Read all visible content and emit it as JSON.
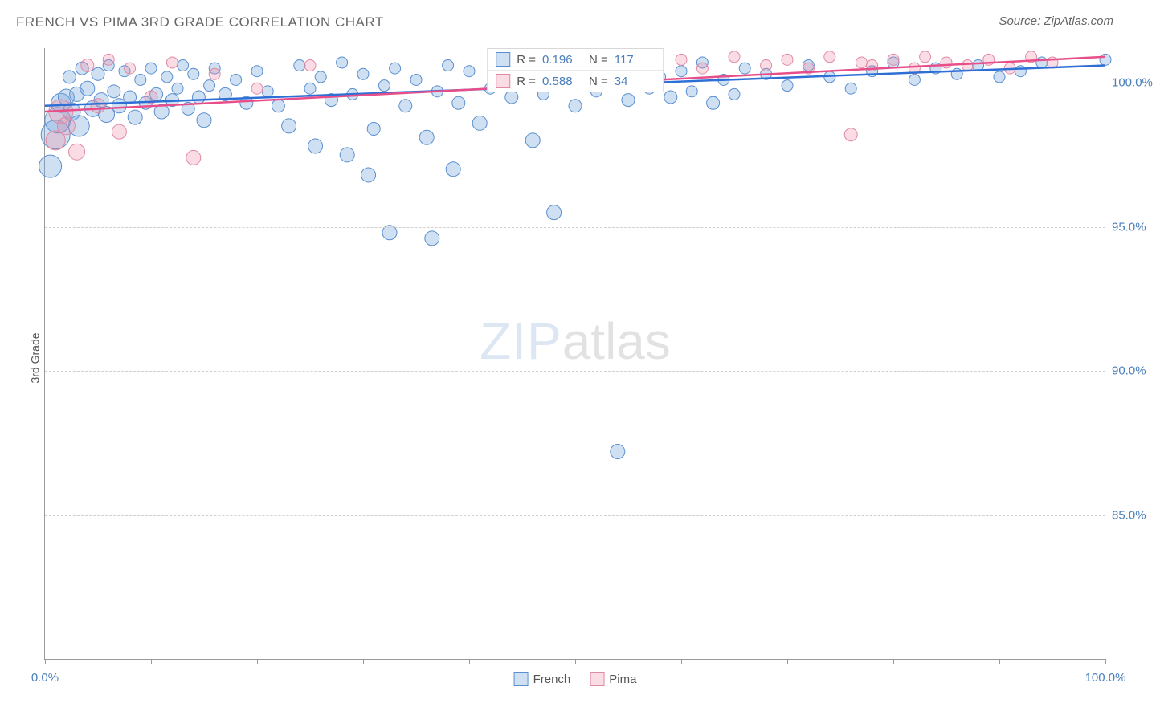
{
  "title": "FRENCH VS PIMA 3RD GRADE CORRELATION CHART",
  "source": "Source: ZipAtlas.com",
  "ylabel": "3rd Grade",
  "watermark_zip": "ZIP",
  "watermark_atlas": "atlas",
  "chart": {
    "type": "scatter",
    "xlim": [
      0,
      100
    ],
    "ylim": [
      80,
      101.2
    ],
    "x_ticks": [
      0,
      10,
      20,
      30,
      40,
      50,
      60,
      70,
      80,
      90,
      100
    ],
    "x_tick_labels": {
      "0": "0.0%",
      "100": "100.0%"
    },
    "y_ticks": [
      85,
      90,
      95,
      100
    ],
    "y_tick_labels": {
      "85": "85.0%",
      "90": "90.0%",
      "95": "95.0%",
      "100": "100.0%"
    },
    "grid_color": "#d0d0d0",
    "background_color": "#ffffff",
    "axis_color": "#999999",
    "label_color": "#4a7ebb",
    "label_fontsize": 15,
    "title_fontsize": 17,
    "title_color": "#666666",
    "series": [
      {
        "name": "French",
        "fill_color": "rgba(120,165,220,0.35)",
        "stroke_color": "#5a8fcf",
        "line_color": "#2e6fd6",
        "line_width": 2.5,
        "trend": {
          "x0": 0,
          "y0": 99.2,
          "x1": 100,
          "y1": 100.6
        },
        "R_label": "R =",
        "R_value": "0.196",
        "N_label": "N =",
        "N_value": "117",
        "points": [
          {
            "x": 0.5,
            "y": 97.1,
            "r": 14
          },
          {
            "x": 1,
            "y": 98.2,
            "r": 18
          },
          {
            "x": 1.2,
            "y": 98.7,
            "r": 16
          },
          {
            "x": 1.5,
            "y": 99.3,
            "r": 12
          },
          {
            "x": 2,
            "y": 99.5,
            "r": 10
          },
          {
            "x": 2.3,
            "y": 100.2,
            "r": 8
          },
          {
            "x": 2.5,
            "y": 99.0,
            "r": 11
          },
          {
            "x": 3,
            "y": 99.6,
            "r": 9
          },
          {
            "x": 3.2,
            "y": 98.5,
            "r": 13
          },
          {
            "x": 3.5,
            "y": 100.5,
            "r": 8
          },
          {
            "x": 4,
            "y": 99.8,
            "r": 9
          },
          {
            "x": 4.5,
            "y": 99.1,
            "r": 10
          },
          {
            "x": 5,
            "y": 100.3,
            "r": 8
          },
          {
            "x": 5.3,
            "y": 99.4,
            "r": 9
          },
          {
            "x": 5.8,
            "y": 98.9,
            "r": 10
          },
          {
            "x": 6,
            "y": 100.6,
            "r": 7
          },
          {
            "x": 6.5,
            "y": 99.7,
            "r": 8
          },
          {
            "x": 7,
            "y": 99.2,
            "r": 9
          },
          {
            "x": 7.5,
            "y": 100.4,
            "r": 7
          },
          {
            "x": 8,
            "y": 99.5,
            "r": 8
          },
          {
            "x": 8.5,
            "y": 98.8,
            "r": 9
          },
          {
            "x": 9,
            "y": 100.1,
            "r": 7
          },
          {
            "x": 9.5,
            "y": 99.3,
            "r": 8
          },
          {
            "x": 10,
            "y": 100.5,
            "r": 7
          },
          {
            "x": 10.5,
            "y": 99.6,
            "r": 8
          },
          {
            "x": 11,
            "y": 99.0,
            "r": 9
          },
          {
            "x": 11.5,
            "y": 100.2,
            "r": 7
          },
          {
            "x": 12,
            "y": 99.4,
            "r": 8
          },
          {
            "x": 12.5,
            "y": 99.8,
            "r": 7
          },
          {
            "x": 13,
            "y": 100.6,
            "r": 7
          },
          {
            "x": 13.5,
            "y": 99.1,
            "r": 8
          },
          {
            "x": 14,
            "y": 100.3,
            "r": 7
          },
          {
            "x": 14.5,
            "y": 99.5,
            "r": 8
          },
          {
            "x": 15,
            "y": 98.7,
            "r": 9
          },
          {
            "x": 15.5,
            "y": 99.9,
            "r": 7
          },
          {
            "x": 16,
            "y": 100.5,
            "r": 7
          },
          {
            "x": 17,
            "y": 99.6,
            "r": 8
          },
          {
            "x": 18,
            "y": 100.1,
            "r": 7
          },
          {
            "x": 19,
            "y": 99.3,
            "r": 8
          },
          {
            "x": 20,
            "y": 100.4,
            "r": 7
          },
          {
            "x": 21,
            "y": 99.7,
            "r": 7
          },
          {
            "x": 22,
            "y": 99.2,
            "r": 8
          },
          {
            "x": 23,
            "y": 98.5,
            "r": 9
          },
          {
            "x": 24,
            "y": 100.6,
            "r": 7
          },
          {
            "x": 25,
            "y": 99.8,
            "r": 7
          },
          {
            "x": 25.5,
            "y": 97.8,
            "r": 9
          },
          {
            "x": 26,
            "y": 100.2,
            "r": 7
          },
          {
            "x": 27,
            "y": 99.4,
            "r": 8
          },
          {
            "x": 28,
            "y": 100.7,
            "r": 7
          },
          {
            "x": 28.5,
            "y": 97.5,
            "r": 9
          },
          {
            "x": 29,
            "y": 99.6,
            "r": 7
          },
          {
            "x": 30,
            "y": 100.3,
            "r": 7
          },
          {
            "x": 30.5,
            "y": 96.8,
            "r": 9
          },
          {
            "x": 31,
            "y": 98.4,
            "r": 8
          },
          {
            "x": 32,
            "y": 99.9,
            "r": 7
          },
          {
            "x": 32.5,
            "y": 94.8,
            "r": 9
          },
          {
            "x": 33,
            "y": 100.5,
            "r": 7
          },
          {
            "x": 34,
            "y": 99.2,
            "r": 8
          },
          {
            "x": 35,
            "y": 100.1,
            "r": 7
          },
          {
            "x": 36,
            "y": 98.1,
            "r": 9
          },
          {
            "x": 36.5,
            "y": 94.6,
            "r": 9
          },
          {
            "x": 37,
            "y": 99.7,
            "r": 7
          },
          {
            "x": 38,
            "y": 100.6,
            "r": 7
          },
          {
            "x": 38.5,
            "y": 97.0,
            "r": 9
          },
          {
            "x": 39,
            "y": 99.3,
            "r": 8
          },
          {
            "x": 40,
            "y": 100.4,
            "r": 7
          },
          {
            "x": 41,
            "y": 98.6,
            "r": 9
          },
          {
            "x": 42,
            "y": 99.8,
            "r": 7
          },
          {
            "x": 43,
            "y": 100.2,
            "r": 7
          },
          {
            "x": 44,
            "y": 99.5,
            "r": 8
          },
          {
            "x": 45,
            "y": 100.7,
            "r": 7
          },
          {
            "x": 46,
            "y": 98.0,
            "r": 9
          },
          {
            "x": 47,
            "y": 99.6,
            "r": 7
          },
          {
            "x": 48,
            "y": 95.5,
            "r": 9
          },
          {
            "x": 49,
            "y": 100.3,
            "r": 7
          },
          {
            "x": 50,
            "y": 99.2,
            "r": 8
          },
          {
            "x": 51,
            "y": 100.5,
            "r": 7
          },
          {
            "x": 52,
            "y": 99.7,
            "r": 7
          },
          {
            "x": 53,
            "y": 100.1,
            "r": 7
          },
          {
            "x": 54,
            "y": 87.2,
            "r": 9
          },
          {
            "x": 55,
            "y": 99.4,
            "r": 8
          },
          {
            "x": 56,
            "y": 100.6,
            "r": 7
          },
          {
            "x": 57,
            "y": 99.8,
            "r": 7
          },
          {
            "x": 58,
            "y": 100.2,
            "r": 7
          },
          {
            "x": 59,
            "y": 99.5,
            "r": 8
          },
          {
            "x": 60,
            "y": 100.4,
            "r": 7
          },
          {
            "x": 61,
            "y": 99.7,
            "r": 7
          },
          {
            "x": 62,
            "y": 100.7,
            "r": 7
          },
          {
            "x": 63,
            "y": 99.3,
            "r": 8
          },
          {
            "x": 64,
            "y": 100.1,
            "r": 7
          },
          {
            "x": 65,
            "y": 99.6,
            "r": 7
          },
          {
            "x": 66,
            "y": 100.5,
            "r": 7
          },
          {
            "x": 68,
            "y": 100.3,
            "r": 7
          },
          {
            "x": 70,
            "y": 99.9,
            "r": 7
          },
          {
            "x": 72,
            "y": 100.6,
            "r": 7
          },
          {
            "x": 74,
            "y": 100.2,
            "r": 7
          },
          {
            "x": 76,
            "y": 99.8,
            "r": 7
          },
          {
            "x": 78,
            "y": 100.4,
            "r": 7
          },
          {
            "x": 80,
            "y": 100.7,
            "r": 7
          },
          {
            "x": 82,
            "y": 100.1,
            "r": 7
          },
          {
            "x": 84,
            "y": 100.5,
            "r": 7
          },
          {
            "x": 86,
            "y": 100.3,
            "r": 7
          },
          {
            "x": 88,
            "y": 100.6,
            "r": 7
          },
          {
            "x": 90,
            "y": 100.2,
            "r": 7
          },
          {
            "x": 92,
            "y": 100.4,
            "r": 7
          },
          {
            "x": 94,
            "y": 100.7,
            "r": 7
          },
          {
            "x": 100,
            "y": 100.8,
            "r": 7
          }
        ]
      },
      {
        "name": "Pima",
        "fill_color": "rgba(235,140,165,0.30)",
        "stroke_color": "#e08aa5",
        "line_color": "#e84f8a",
        "line_width": 2.5,
        "trend": {
          "x0": 0,
          "y0": 99.0,
          "x1": 100,
          "y1": 100.9
        },
        "R_label": "R =",
        "R_value": "0.588",
        "N_label": "N =",
        "N_value": "34",
        "points": [
          {
            "x": 1,
            "y": 98.0,
            "r": 12
          },
          {
            "x": 1.5,
            "y": 99.0,
            "r": 15
          },
          {
            "x": 2,
            "y": 98.5,
            "r": 11
          },
          {
            "x": 3,
            "y": 97.6,
            "r": 10
          },
          {
            "x": 4,
            "y": 100.6,
            "r": 8
          },
          {
            "x": 5,
            "y": 99.2,
            "r": 9
          },
          {
            "x": 6,
            "y": 100.8,
            "r": 7
          },
          {
            "x": 7,
            "y": 98.3,
            "r": 9
          },
          {
            "x": 8,
            "y": 100.5,
            "r": 7
          },
          {
            "x": 10,
            "y": 99.5,
            "r": 8
          },
          {
            "x": 12,
            "y": 100.7,
            "r": 7
          },
          {
            "x": 14,
            "y": 97.4,
            "r": 9
          },
          {
            "x": 16,
            "y": 100.3,
            "r": 7
          },
          {
            "x": 20,
            "y": 99.8,
            "r": 7
          },
          {
            "x": 25,
            "y": 100.6,
            "r": 7
          },
          {
            "x": 60,
            "y": 100.8,
            "r": 7
          },
          {
            "x": 62,
            "y": 100.5,
            "r": 7
          },
          {
            "x": 65,
            "y": 100.9,
            "r": 7
          },
          {
            "x": 68,
            "y": 100.6,
            "r": 7
          },
          {
            "x": 70,
            "y": 100.8,
            "r": 7
          },
          {
            "x": 72,
            "y": 100.5,
            "r": 7
          },
          {
            "x": 74,
            "y": 100.9,
            "r": 7
          },
          {
            "x": 76,
            "y": 98.2,
            "r": 8
          },
          {
            "x": 77,
            "y": 100.7,
            "r": 7
          },
          {
            "x": 78,
            "y": 100.6,
            "r": 7
          },
          {
            "x": 80,
            "y": 100.8,
            "r": 7
          },
          {
            "x": 82,
            "y": 100.5,
            "r": 7
          },
          {
            "x": 83,
            "y": 100.9,
            "r": 7
          },
          {
            "x": 85,
            "y": 100.7,
            "r": 7
          },
          {
            "x": 87,
            "y": 100.6,
            "r": 7
          },
          {
            "x": 89,
            "y": 100.8,
            "r": 7
          },
          {
            "x": 91,
            "y": 100.5,
            "r": 7
          },
          {
            "x": 93,
            "y": 100.9,
            "r": 7
          },
          {
            "x": 95,
            "y": 100.7,
            "r": 7
          }
        ]
      }
    ],
    "legend_bottom": [
      {
        "label": "French",
        "fill": "rgba(120,165,220,0.35)",
        "stroke": "#5a8fcf"
      },
      {
        "label": "Pima",
        "fill": "rgba(235,140,165,0.30)",
        "stroke": "#e08aa5"
      }
    ]
  }
}
